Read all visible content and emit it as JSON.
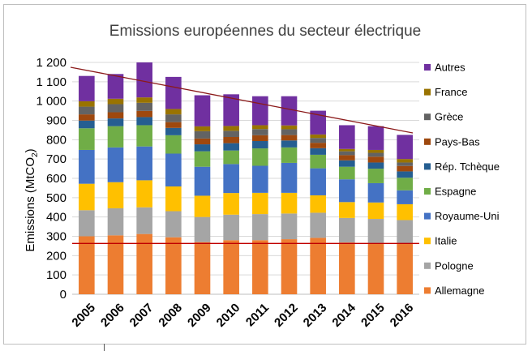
{
  "chart_data": {
    "type": "bar",
    "stacked": true,
    "title": "Emissions européennes du secteur électrique",
    "ylabel": "Emissions (MtCO2)",
    "ylabel_main": "Emissions (MtCO",
    "ylabel_sub": "2",
    "ylabel_tail": ")",
    "xlabel": "",
    "ylim": [
      0,
      1200
    ],
    "yticks": [
      0,
      100,
      200,
      300,
      400,
      500,
      600,
      700,
      800,
      900,
      1000,
      1100,
      1200
    ],
    "ytick_labels": [
      "0",
      "100",
      "200",
      "300",
      "400",
      "500",
      "600",
      "700",
      "800",
      "900",
      "1 000",
      "1 100",
      "1 200"
    ],
    "categories": [
      "2005",
      "2006",
      "2007",
      "2008",
      "2009",
      "2010",
      "2011",
      "2012",
      "2013",
      "2014",
      "2015",
      "2016"
    ],
    "legend_position": "right",
    "series": [
      {
        "name": "Allemagne",
        "color": "#ED7D31",
        "values": [
          300,
          305,
          312,
          295,
          270,
          280,
          280,
          285,
          292,
          268,
          265,
          262
        ]
      },
      {
        "name": "Pologne",
        "color": "#A5A5A5",
        "values": [
          135,
          140,
          138,
          135,
          130,
          132,
          135,
          133,
          130,
          127,
          125,
          122
        ]
      },
      {
        "name": "Italie",
        "color": "#FFC000",
        "values": [
          137,
          135,
          140,
          128,
          110,
          112,
          110,
          107,
          90,
          82,
          85,
          82
        ]
      },
      {
        "name": "Royaume-Uni",
        "color": "#4472C4",
        "values": [
          175,
          180,
          175,
          170,
          150,
          150,
          140,
          155,
          140,
          118,
          100,
          72
        ]
      },
      {
        "name": "Espagne",
        "color": "#70AD47",
        "values": [
          112,
          110,
          110,
          95,
          80,
          70,
          90,
          80,
          70,
          65,
          75,
          65
        ]
      },
      {
        "name": "Rép. Tchèque",
        "color": "#255E91",
        "values": [
          40,
          40,
          42,
          38,
          36,
          38,
          38,
          36,
          34,
          33,
          32,
          33
        ]
      },
      {
        "name": "Pays-Bas",
        "color": "#9E480E",
        "values": [
          32,
          32,
          32,
          30,
          30,
          32,
          30,
          28,
          28,
          27,
          30,
          28
        ]
      },
      {
        "name": "Grèce",
        "color": "#636363",
        "values": [
          40,
          42,
          42,
          40,
          38,
          32,
          32,
          30,
          25,
          20,
          20,
          18
        ]
      },
      {
        "name": "France",
        "color": "#997300",
        "values": [
          28,
          28,
          28,
          28,
          25,
          25,
          20,
          20,
          18,
          12,
          15,
          18
        ]
      },
      {
        "name": "Autres",
        "color": "#7030A0",
        "values": [
          131,
          128,
          181,
          166,
          161,
          164,
          150,
          151,
          123,
          123,
          123,
          125
        ]
      }
    ],
    "reference_line": {
      "value": 263,
      "color": "#C00000"
    },
    "trend_line": {
      "start": 1175,
      "end": 835,
      "color": "#8B1A1A"
    }
  }
}
